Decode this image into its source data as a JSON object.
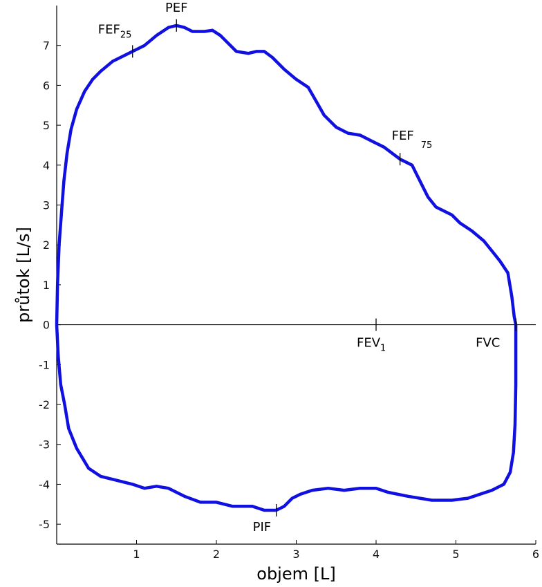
{
  "chart_data": {
    "type": "line",
    "title": "",
    "xlabel": "objem [L]",
    "ylabel": "průtok [L/s]",
    "xlim": [
      0,
      6
    ],
    "ylim": [
      -5.5,
      8
    ],
    "x_ticks": [
      "1",
      "2",
      "3",
      "4",
      "5",
      "6"
    ],
    "y_ticks": [
      "-5",
      "-4",
      "-3",
      "-2",
      "-1",
      "0",
      "1",
      "2",
      "3",
      "4",
      "5",
      "6",
      "7"
    ],
    "zero_line": true,
    "grid": false,
    "line_color": "#1010e0",
    "series": [
      {
        "values_xy": [
          [
            0.0,
            0.0
          ],
          [
            0.01,
            1.0
          ],
          [
            0.03,
            2.0
          ],
          [
            0.06,
            2.8
          ],
          [
            0.09,
            3.6
          ],
          [
            0.13,
            4.3
          ],
          [
            0.18,
            4.9
          ],
          [
            0.25,
            5.4
          ],
          [
            0.35,
            5.85
          ],
          [
            0.45,
            6.15
          ],
          [
            0.55,
            6.35
          ],
          [
            0.7,
            6.6
          ],
          [
            0.85,
            6.75
          ],
          [
            0.95,
            6.85
          ],
          [
            1.1,
            7.0
          ],
          [
            1.25,
            7.25
          ],
          [
            1.4,
            7.45
          ],
          [
            1.5,
            7.5
          ],
          [
            1.6,
            7.45
          ],
          [
            1.7,
            7.35
          ],
          [
            1.85,
            7.35
          ],
          [
            1.95,
            7.38
          ],
          [
            2.05,
            7.25
          ],
          [
            2.15,
            7.05
          ],
          [
            2.25,
            6.85
          ],
          [
            2.4,
            6.8
          ],
          [
            2.5,
            6.85
          ],
          [
            2.6,
            6.85
          ],
          [
            2.7,
            6.7
          ],
          [
            2.85,
            6.4
          ],
          [
            3.0,
            6.15
          ],
          [
            3.15,
            5.95
          ],
          [
            3.25,
            5.6
          ],
          [
            3.35,
            5.25
          ],
          [
            3.5,
            4.95
          ],
          [
            3.65,
            4.8
          ],
          [
            3.8,
            4.75
          ],
          [
            3.95,
            4.6
          ],
          [
            4.1,
            4.45
          ],
          [
            4.3,
            4.15
          ],
          [
            4.45,
            4.0
          ],
          [
            4.55,
            3.6
          ],
          [
            4.65,
            3.2
          ],
          [
            4.75,
            2.95
          ],
          [
            4.95,
            2.75
          ],
          [
            5.05,
            2.55
          ],
          [
            5.2,
            2.35
          ],
          [
            5.35,
            2.1
          ],
          [
            5.45,
            1.85
          ],
          [
            5.55,
            1.6
          ],
          [
            5.65,
            1.3
          ],
          [
            5.7,
            0.7
          ],
          [
            5.73,
            0.2
          ],
          [
            5.75,
            0.0
          ],
          [
            5.75,
            -0.5
          ],
          [
            5.75,
            -1.5
          ],
          [
            5.74,
            -2.5
          ],
          [
            5.72,
            -3.2
          ],
          [
            5.68,
            -3.7
          ],
          [
            5.6,
            -4.0
          ],
          [
            5.45,
            -4.15
          ],
          [
            5.3,
            -4.25
          ],
          [
            5.15,
            -4.35
          ],
          [
            4.95,
            -4.4
          ],
          [
            4.7,
            -4.4
          ],
          [
            4.4,
            -4.3
          ],
          [
            4.15,
            -4.2
          ],
          [
            4.0,
            -4.1
          ],
          [
            3.8,
            -4.1
          ],
          [
            3.6,
            -4.15
          ],
          [
            3.4,
            -4.1
          ],
          [
            3.2,
            -4.15
          ],
          [
            3.05,
            -4.25
          ],
          [
            2.95,
            -4.35
          ],
          [
            2.85,
            -4.55
          ],
          [
            2.75,
            -4.65
          ],
          [
            2.6,
            -4.65
          ],
          [
            2.45,
            -4.55
          ],
          [
            2.2,
            -4.55
          ],
          [
            2.0,
            -4.45
          ],
          [
            1.8,
            -4.45
          ],
          [
            1.6,
            -4.3
          ],
          [
            1.4,
            -4.1
          ],
          [
            1.25,
            -4.05
          ],
          [
            1.1,
            -4.1
          ],
          [
            0.95,
            -4.0
          ],
          [
            0.75,
            -3.9
          ],
          [
            0.55,
            -3.8
          ],
          [
            0.4,
            -3.6
          ],
          [
            0.25,
            -3.1
          ],
          [
            0.15,
            -2.6
          ],
          [
            0.1,
            -2.0
          ],
          [
            0.05,
            -1.5
          ],
          [
            0.02,
            -0.8
          ],
          [
            0.0,
            0.0
          ]
        ]
      }
    ],
    "annotations": [
      {
        "label": "FEF",
        "sub": "25",
        "x": 0.95,
        "y": 6.85,
        "marker": "vtick"
      },
      {
        "label": "PEF",
        "sub": "",
        "x": 1.5,
        "y": 7.5,
        "marker": "vtick"
      },
      {
        "label": "FEF",
        "sub": "75",
        "x": 4.3,
        "y": 4.15,
        "marker": "vtick"
      },
      {
        "label": "FEV",
        "sub": "1",
        "x": 4.0,
        "y": 0.0,
        "marker": "vtick"
      },
      {
        "label": "FVC",
        "sub": "",
        "x": 5.75,
        "y": 0.0,
        "marker": "vtick"
      },
      {
        "label": "PIF",
        "sub": "",
        "x": 2.75,
        "y": -4.65,
        "marker": "vtick"
      }
    ]
  }
}
